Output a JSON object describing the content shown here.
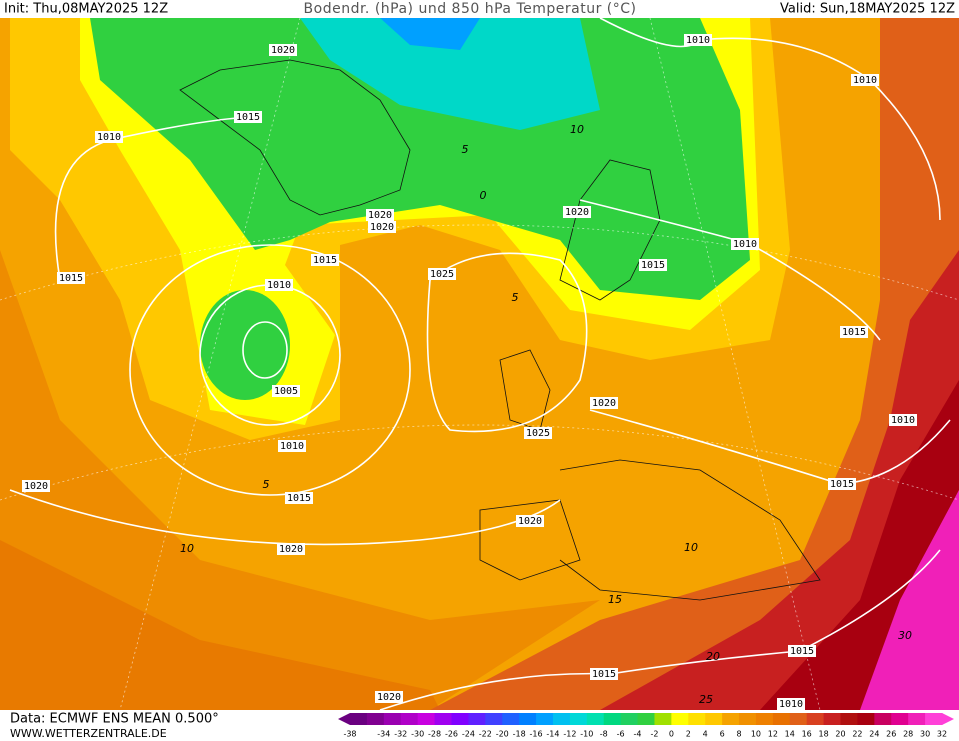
{
  "header": {
    "init": "Init: Thu,08MAY2025 12Z",
    "title": "Bodendr. (hPa) und 850 hPa Temperatur (°C)",
    "valid": "Valid: Sun,18MAY2025 12Z"
  },
  "isobar_labels": [
    "1020",
    "1015",
    "1010",
    "1010",
    "1010",
    "1020",
    "1020",
    "1015",
    "1025",
    "1020",
    "1010",
    "1015",
    "1010",
    "1005",
    "1010",
    "1015",
    "1020",
    "1020",
    "1015",
    "1015",
    "1025",
    "1020",
    "1020",
    "1010",
    "1015",
    "1015",
    "1015",
    "1020",
    "1010"
  ],
  "temperature_labels": [
    "10",
    "5",
    "0",
    "5",
    "5",
    "10",
    "10",
    "15",
    "20",
    "30",
    "25"
  ],
  "colorbar": {
    "ticks": [
      -38,
      -34,
      -32,
      -30,
      -28,
      -26,
      -24,
      -22,
      -20,
      -18,
      -16,
      -14,
      -12,
      -10,
      -8,
      -6,
      -4,
      -2,
      0,
      2,
      4,
      6,
      8,
      10,
      12,
      14,
      16,
      18,
      20,
      22,
      24,
      26,
      28,
      30,
      32
    ]
  },
  "footer": {
    "source": "Data: ECMWF ENS MEAN 0.500°",
    "website": "WWW.WETTERZENTRALE.DE"
  }
}
